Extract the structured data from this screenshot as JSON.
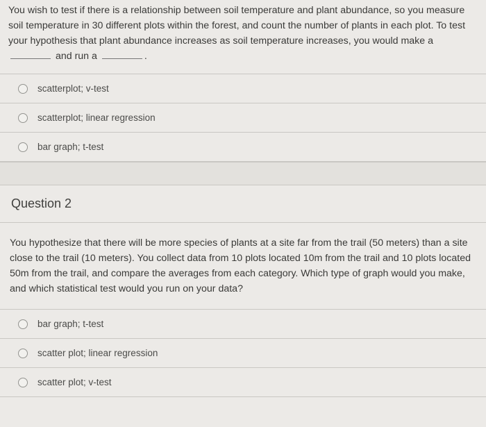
{
  "colors": {
    "page_bg": "#eceae7",
    "gap_bg": "#e3e1dd",
    "border": "#c9c7c3",
    "text_primary": "#3a3a38",
    "text_option": "#4b4b49",
    "radio_border": "#949490"
  },
  "q1": {
    "prompt_pre": "You wish to test if there is a relationship between soil temperature and plant abundance, so you measure soil temperature in 30 different plots within the forest, and count the number of plants in each plot. To test your hypothesis that plant abundance increases as soil temperature increases, you would make a",
    "prompt_mid": "and run a",
    "prompt_post": ".",
    "options": [
      "scatterplot; v-test",
      "scatterplot; linear regression",
      "bar graph; t-test"
    ]
  },
  "q2": {
    "header": "Question 2",
    "prompt": "You hypothesize that there will be more species of plants at a site far from the trail (50 meters) than a site close to the trail (10 meters). You collect data from 10 plots located 10m from the trail and 10 plots located 50m from the trail, and compare the averages from each category. Which type of graph would you make, and which statistical test would you run on your data?",
    "options": [
      "bar graph; t-test",
      "scatter plot; linear regression",
      "scatter plot; v-test"
    ]
  }
}
